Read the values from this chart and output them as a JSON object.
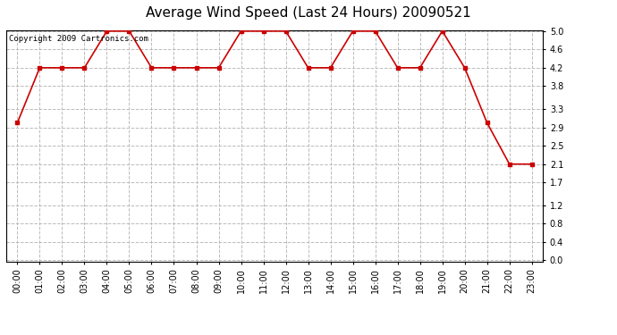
{
  "title": "Average Wind Speed (Last 24 Hours) 20090521",
  "copyright_text": "Copyright 2009 Cartronics.com",
  "hours": [
    "00:00",
    "01:00",
    "02:00",
    "03:00",
    "04:00",
    "05:00",
    "06:00",
    "07:00",
    "08:00",
    "09:00",
    "10:00",
    "11:00",
    "12:00",
    "13:00",
    "14:00",
    "15:00",
    "16:00",
    "17:00",
    "18:00",
    "19:00",
    "20:00",
    "21:00",
    "22:00",
    "23:00"
  ],
  "values": [
    3.0,
    4.2,
    4.2,
    4.2,
    5.0,
    5.0,
    4.2,
    4.2,
    4.2,
    4.2,
    5.0,
    5.0,
    5.0,
    4.2,
    4.2,
    5.0,
    5.0,
    4.2,
    4.2,
    5.0,
    4.2,
    3.0,
    2.1,
    2.1
  ],
  "line_color": "#cc0000",
  "marker_color": "#cc0000",
  "fig_bg_color": "#ffffff",
  "plot_bg_color": "#ffffff",
  "grid_color": "#bbbbbb",
  "border_color": "#000000",
  "ylim_min": 0.0,
  "ylim_max": 5.0,
  "ytick_values": [
    0.0,
    0.4,
    0.8,
    1.2,
    1.7,
    2.1,
    2.5,
    2.9,
    3.3,
    3.8,
    4.2,
    4.6,
    5.0
  ],
  "title_fontsize": 11,
  "copyright_fontsize": 6.5,
  "tick_fontsize": 7,
  "figwidth": 6.9,
  "figheight": 3.75,
  "dpi": 100
}
